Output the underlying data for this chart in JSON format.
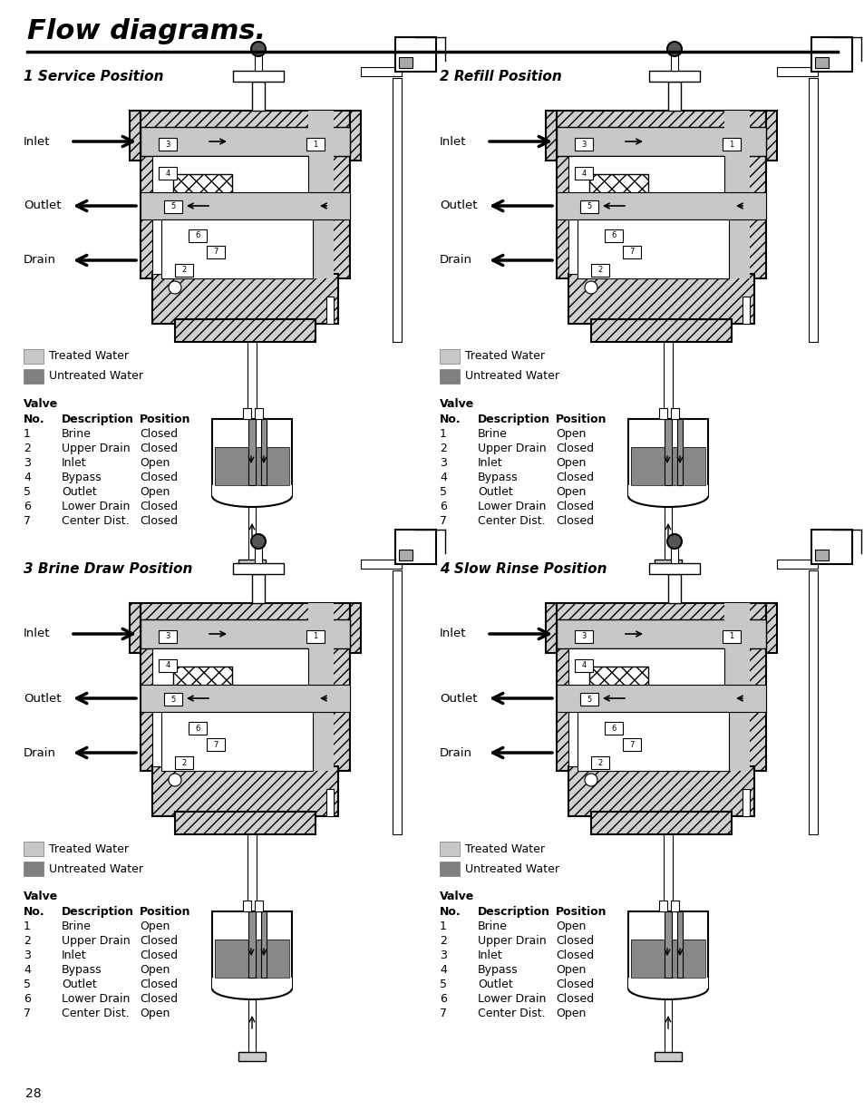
{
  "title": "Flow diagrams.",
  "page_number": "28",
  "diagrams": [
    {
      "label": "1 Service Position",
      "valve_data": [
        [
          1,
          "Brine",
          "Closed"
        ],
        [
          2,
          "Upper Drain",
          "Closed"
        ],
        [
          3,
          "Inlet",
          "Open"
        ],
        [
          4,
          "Bypass",
          "Closed"
        ],
        [
          5,
          "Outlet",
          "Open"
        ],
        [
          6,
          "Lower Drain",
          "Closed"
        ],
        [
          7,
          "Center Dist.",
          "Closed"
        ]
      ]
    },
    {
      "label": "2 Refill Position",
      "valve_data": [
        [
          1,
          "Brine",
          "Open"
        ],
        [
          2,
          "Upper Drain",
          "Closed"
        ],
        [
          3,
          "Inlet",
          "Open"
        ],
        [
          4,
          "Bypass",
          "Closed"
        ],
        [
          5,
          "Outlet",
          "Open"
        ],
        [
          6,
          "Lower Drain",
          "Closed"
        ],
        [
          7,
          "Center Dist.",
          "Closed"
        ]
      ]
    },
    {
      "label": "3 Brine Draw Position",
      "valve_data": [
        [
          1,
          "Brine",
          "Open"
        ],
        [
          2,
          "Upper Drain",
          "Closed"
        ],
        [
          3,
          "Inlet",
          "Closed"
        ],
        [
          4,
          "Bypass",
          "Open"
        ],
        [
          5,
          "Outlet",
          "Closed"
        ],
        [
          6,
          "Lower Drain",
          "Closed"
        ],
        [
          7,
          "Center Dist.",
          "Open"
        ]
      ]
    },
    {
      "label": "4 Slow Rinse Position",
      "valve_data": [
        [
          1,
          "Brine",
          "Open"
        ],
        [
          2,
          "Upper Drain",
          "Closed"
        ],
        [
          3,
          "Inlet",
          "Closed"
        ],
        [
          4,
          "Bypass",
          "Open"
        ],
        [
          5,
          "Outlet",
          "Closed"
        ],
        [
          6,
          "Lower Drain",
          "Closed"
        ],
        [
          7,
          "Center Dist.",
          "Open"
        ]
      ]
    }
  ],
  "colors": {
    "hatch_body": "#d0d0d0",
    "treated_water": "#c8c8c8",
    "untreated_water": "#808080",
    "background": "#ffffff",
    "light_gray": "#b8b8b8",
    "mid_gray": "#909090",
    "dark_ball": "#555555",
    "tank_water": "#888888",
    "pipe_gray": "#aaaaaa",
    "box_gray": "#cccccc"
  }
}
